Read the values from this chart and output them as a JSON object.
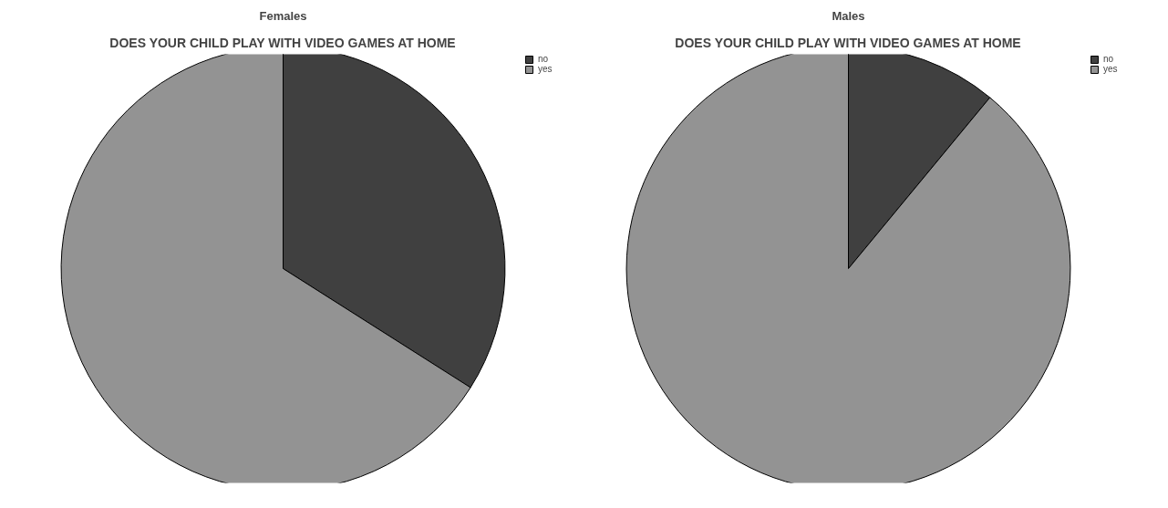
{
  "chart_data": [
    {
      "type": "pie",
      "title": "Females",
      "subtitle": "DOES YOUR CHILD PLAY WITH VIDEO GAMES AT HOME",
      "categories": [
        "no",
        "yes"
      ],
      "values": [
        34,
        66
      ],
      "colors": [
        "#404040",
        "#939393"
      ],
      "legend": "top right"
    },
    {
      "type": "pie",
      "title": "Males",
      "subtitle": "DOES YOUR CHILD PLAY WITH VIDEO GAMES AT HOME",
      "categories": [
        "no",
        "yes"
      ],
      "values": [
        11,
        89
      ],
      "colors": [
        "#404040",
        "#939393"
      ],
      "legend": "top right"
    }
  ]
}
